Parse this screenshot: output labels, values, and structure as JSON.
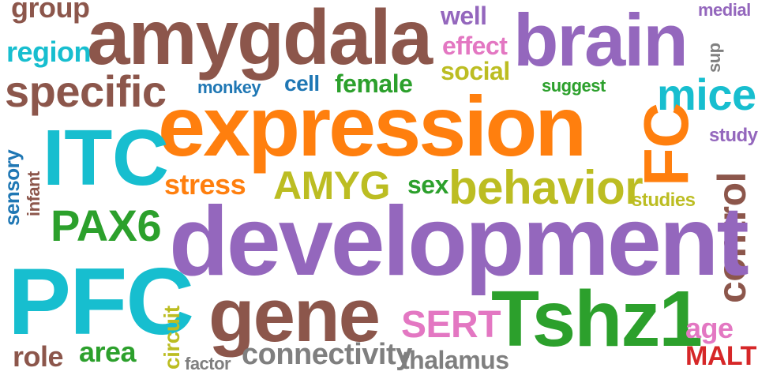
{
  "colors": {
    "brown": "#8c564b",
    "purple": "#9467bd",
    "orange": "#ff7f0e",
    "cyan": "#17becf",
    "green": "#2ca02c",
    "olive": "#bcbd22",
    "pink": "#e377c2",
    "blue": "#1f77b4",
    "gray": "#7f7f7f",
    "red": "#d62728"
  },
  "words": {
    "group": "group",
    "amygdala": "amygdala",
    "well": "well",
    "brain": "brain",
    "medial": "medial",
    "region": "region",
    "effect": "effect",
    "sup": "sup",
    "social": "social",
    "specific": "specific",
    "monkey": "monkey",
    "cell": "cell",
    "female": "female",
    "suggest": "suggest",
    "mice": "mice",
    "expression": "expression",
    "sensory": "sensory",
    "infant": "infant",
    "ITC": "ITC",
    "FC": "FC",
    "study": "study",
    "stress": "stress",
    "AMYG": "AMYG",
    "sex": "sex",
    "behavior": "behavior",
    "studies": "studies",
    "control": "control",
    "PAX6": "PAX6",
    "development": "development",
    "PFC": "PFC",
    "gene": "gene",
    "SERT": "SERT",
    "Tshz1": "Tshz1",
    "circuit": "circuit",
    "age": "age",
    "MALT": "MALT",
    "role": "role",
    "area": "area",
    "factor": "factor",
    "connectivity": "connectivity",
    "thalamus": "thalamus"
  }
}
